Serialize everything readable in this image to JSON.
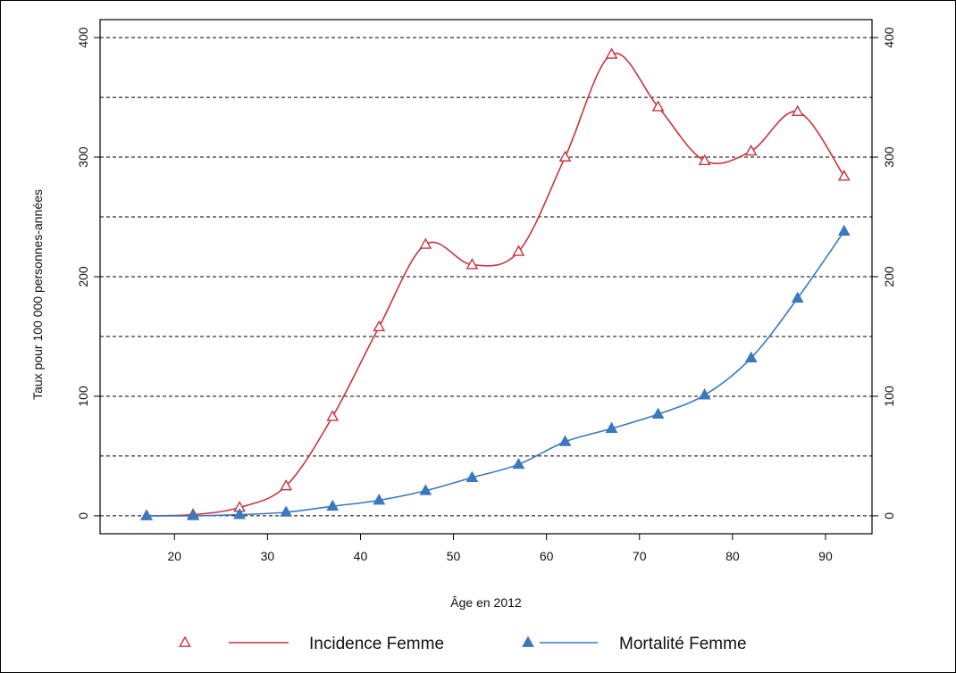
{
  "chart_data": {
    "type": "line",
    "xlabel": "Âge en 2012",
    "ylabel": "Taux pour 100 000 personnes-années",
    "xlim": [
      12,
      95
    ],
    "ylim": [
      -15,
      415
    ],
    "x_ticks": [
      "20",
      "30",
      "40",
      "50",
      "60",
      "70",
      "80",
      "90"
    ],
    "y_ticks": [
      "0",
      "100",
      "200",
      "300",
      "400"
    ],
    "y_ticks_right": [
      "0",
      "100",
      "200",
      "300",
      "400"
    ],
    "gridlines_y": [
      0,
      50,
      100,
      150,
      200,
      250,
      300,
      350,
      400
    ],
    "grid": "horizontal dashed",
    "legend_position": "bottom",
    "series": [
      {
        "name": "Incidence Femme",
        "color": "#c8333f",
        "marker": "open-triangle",
        "x": [
          17,
          22,
          27,
          32,
          37,
          42,
          47,
          52,
          57,
          62,
          67,
          72,
          77,
          82,
          87,
          92
        ],
        "values": [
          0,
          1,
          7,
          25,
          83,
          158,
          227,
          210,
          221,
          300,
          386,
          342,
          297,
          305,
          338,
          284
        ]
      },
      {
        "name": "Mortalité Femme",
        "color": "#3a78c0",
        "marker": "filled-triangle",
        "x": [
          17,
          22,
          27,
          32,
          37,
          42,
          47,
          52,
          57,
          62,
          67,
          72,
          77,
          82,
          87,
          92
        ],
        "values": [
          0,
          0,
          1,
          3,
          8,
          13,
          21,
          32,
          43,
          62,
          73,
          85,
          101,
          132,
          182,
          238
        ]
      }
    ],
    "legend": [
      {
        "label": "Incidence Femme",
        "series": 0
      },
      {
        "label": "Mortalité Femme",
        "series": 1
      }
    ]
  }
}
